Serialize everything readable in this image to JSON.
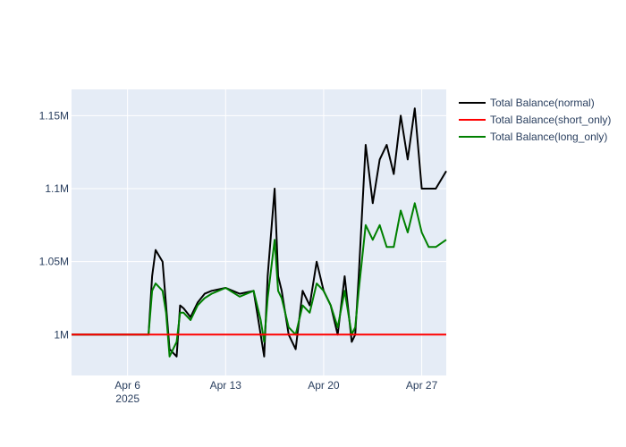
{
  "chart_data": {
    "type": "line",
    "title": "",
    "xlabel": "",
    "ylabel": "",
    "x_range": [
      "2025-04-02",
      "2025-04-28T18:00"
    ],
    "y_range": [
      972000,
      1168000
    ],
    "x_ticks": [
      {
        "value": "2025-04-06",
        "label": "Apr 6",
        "sublabel": "2025"
      },
      {
        "value": "2025-04-13",
        "label": "Apr 13"
      },
      {
        "value": "2025-04-20",
        "label": "Apr 20"
      },
      {
        "value": "2025-04-27",
        "label": "Apr 27"
      }
    ],
    "y_ticks": [
      {
        "value": 1000000,
        "label": "1M"
      },
      {
        "value": 1050000,
        "label": "1.05M"
      },
      {
        "value": 1100000,
        "label": "1.1M"
      },
      {
        "value": 1150000,
        "label": "1.15M"
      }
    ],
    "grid": true,
    "legend_position": "top-right",
    "plot_background": "#e5ecf6",
    "series": [
      {
        "name": "Total Balance(normal)",
        "color": "#000000",
        "x": [
          "2025-04-02",
          "2025-04-06",
          "2025-04-07T12:00",
          "2025-04-07T18:00",
          "2025-04-08",
          "2025-04-08T12:00",
          "2025-04-08T18:00",
          "2025-04-09",
          "2025-04-09T12:00",
          "2025-04-09T18:00",
          "2025-04-10",
          "2025-04-10T12:00",
          "2025-04-11",
          "2025-04-11T12:00",
          "2025-04-12",
          "2025-04-13",
          "2025-04-14",
          "2025-04-15",
          "2025-04-15T12:00",
          "2025-04-15T18:00",
          "2025-04-16",
          "2025-04-16T12:00",
          "2025-04-16T18:00",
          "2025-04-17",
          "2025-04-17T12:00",
          "2025-04-18",
          "2025-04-18T12:00",
          "2025-04-19",
          "2025-04-19T12:00",
          "2025-04-20",
          "2025-04-20T12:00",
          "2025-04-21",
          "2025-04-21T12:00",
          "2025-04-22",
          "2025-04-22T06:00",
          "2025-04-22T12:00",
          "2025-04-23",
          "2025-04-23T12:00",
          "2025-04-24",
          "2025-04-24T12:00",
          "2025-04-25",
          "2025-04-25T12:00",
          "2025-04-26",
          "2025-04-26T12:00",
          "2025-04-27",
          "2025-04-27T12:00",
          "2025-04-28",
          "2025-04-28T18:00"
        ],
        "y": [
          1000000,
          1000000,
          1000000,
          1040000,
          1058000,
          1050000,
          1020000,
          990000,
          985000,
          1020000,
          1018000,
          1012000,
          1022000,
          1028000,
          1030000,
          1032000,
          1028000,
          1030000,
          1000000,
          985000,
          1040000,
          1100000,
          1040000,
          1030000,
          1000000,
          990000,
          1030000,
          1020000,
          1050000,
          1030000,
          1020000,
          1000000,
          1040000,
          995000,
          1000000,
          1040000,
          1130000,
          1090000,
          1120000,
          1130000,
          1110000,
          1150000,
          1120000,
          1155000,
          1100000,
          1100000,
          1100000,
          1112000
        ]
      },
      {
        "name": "Total Balance(short_only)",
        "color": "#ff0000",
        "x": [
          "2025-04-02",
          "2025-04-28T18:00"
        ],
        "y": [
          1000000,
          1000000
        ]
      },
      {
        "name": "Total Balance(long_only)",
        "color": "#008000",
        "x": [
          "2025-04-02",
          "2025-04-06",
          "2025-04-07T12:00",
          "2025-04-07T18:00",
          "2025-04-08",
          "2025-04-08T12:00",
          "2025-04-08T18:00",
          "2025-04-09",
          "2025-04-09T12:00",
          "2025-04-09T18:00",
          "2025-04-10",
          "2025-04-10T12:00",
          "2025-04-11",
          "2025-04-11T12:00",
          "2025-04-12",
          "2025-04-13",
          "2025-04-14",
          "2025-04-15",
          "2025-04-15T12:00",
          "2025-04-15T18:00",
          "2025-04-16",
          "2025-04-16T12:00",
          "2025-04-16T18:00",
          "2025-04-17",
          "2025-04-17T12:00",
          "2025-04-18",
          "2025-04-18T12:00",
          "2025-04-19",
          "2025-04-19T12:00",
          "2025-04-20",
          "2025-04-20T12:00",
          "2025-04-21",
          "2025-04-21T12:00",
          "2025-04-22",
          "2025-04-22T06:00",
          "2025-04-22T12:00",
          "2025-04-23",
          "2025-04-23T12:00",
          "2025-04-24",
          "2025-04-24T12:00",
          "2025-04-25",
          "2025-04-25T12:00",
          "2025-04-26",
          "2025-04-26T12:00",
          "2025-04-27",
          "2025-04-27T12:00",
          "2025-04-28",
          "2025-04-28T18:00"
        ],
        "y": [
          1000000,
          1000000,
          1000000,
          1030000,
          1035000,
          1030000,
          1015000,
          985000,
          995000,
          1015000,
          1015000,
          1010000,
          1020000,
          1025000,
          1028000,
          1032000,
          1026000,
          1030000,
          1010000,
          995000,
          1025000,
          1065000,
          1030000,
          1025000,
          1005000,
          1000000,
          1020000,
          1015000,
          1035000,
          1030000,
          1020000,
          1005000,
          1030000,
          1000000,
          1005000,
          1030000,
          1075000,
          1065000,
          1075000,
          1060000,
          1060000,
          1085000,
          1070000,
          1090000,
          1070000,
          1060000,
          1060000,
          1065000
        ]
      }
    ]
  }
}
